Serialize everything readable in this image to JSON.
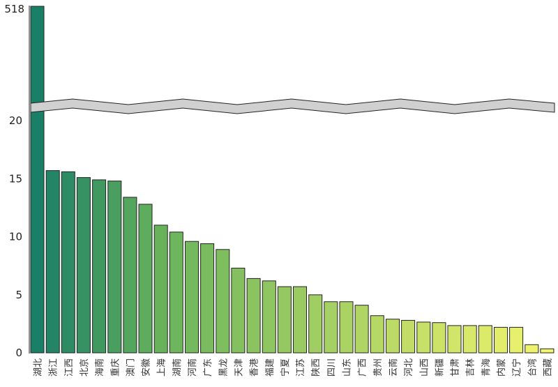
{
  "chart_data": {
    "type": "bar",
    "broken_axis": true,
    "categories": [
      "湖北",
      "浙江",
      "江西",
      "北京",
      "海南",
      "重庆",
      "澳门",
      "安徽",
      "上海",
      "湖南",
      "河南",
      "广东",
      "黑龙",
      "天津",
      "香港",
      "福建",
      "宁夏",
      "江苏",
      "陕西",
      "四川",
      "山东",
      "广西",
      "贵州",
      "云南",
      "河北",
      "山西",
      "新疆",
      "甘肃",
      "吉林",
      "青海",
      "内蒙",
      "辽宁",
      "台湾",
      "西藏"
    ],
    "values": [
      518,
      15.7,
      15.6,
      15.1,
      14.9,
      14.8,
      13.4,
      12.8,
      11.0,
      10.4,
      9.6,
      9.4,
      8.9,
      7.3,
      6.4,
      6.2,
      5.7,
      5.7,
      5.0,
      4.4,
      4.4,
      4.1,
      3.2,
      2.9,
      2.8,
      2.65,
      2.6,
      2.35,
      2.35,
      2.35,
      2.2,
      2.2,
      0.7,
      0.35
    ],
    "y_ticks_lower": [
      0,
      5,
      10,
      15,
      20
    ],
    "y_ticks_upper": [
      518
    ],
    "ylim_lower": [
      0,
      20
    ],
    "colors": {
      "gradient_start": "#1a7f67",
      "gradient_mid": "#6ab45c",
      "gradient_end": "#f2f56d",
      "break_band": "#d0d0d0",
      "bar_edge": "#222222"
    }
  }
}
